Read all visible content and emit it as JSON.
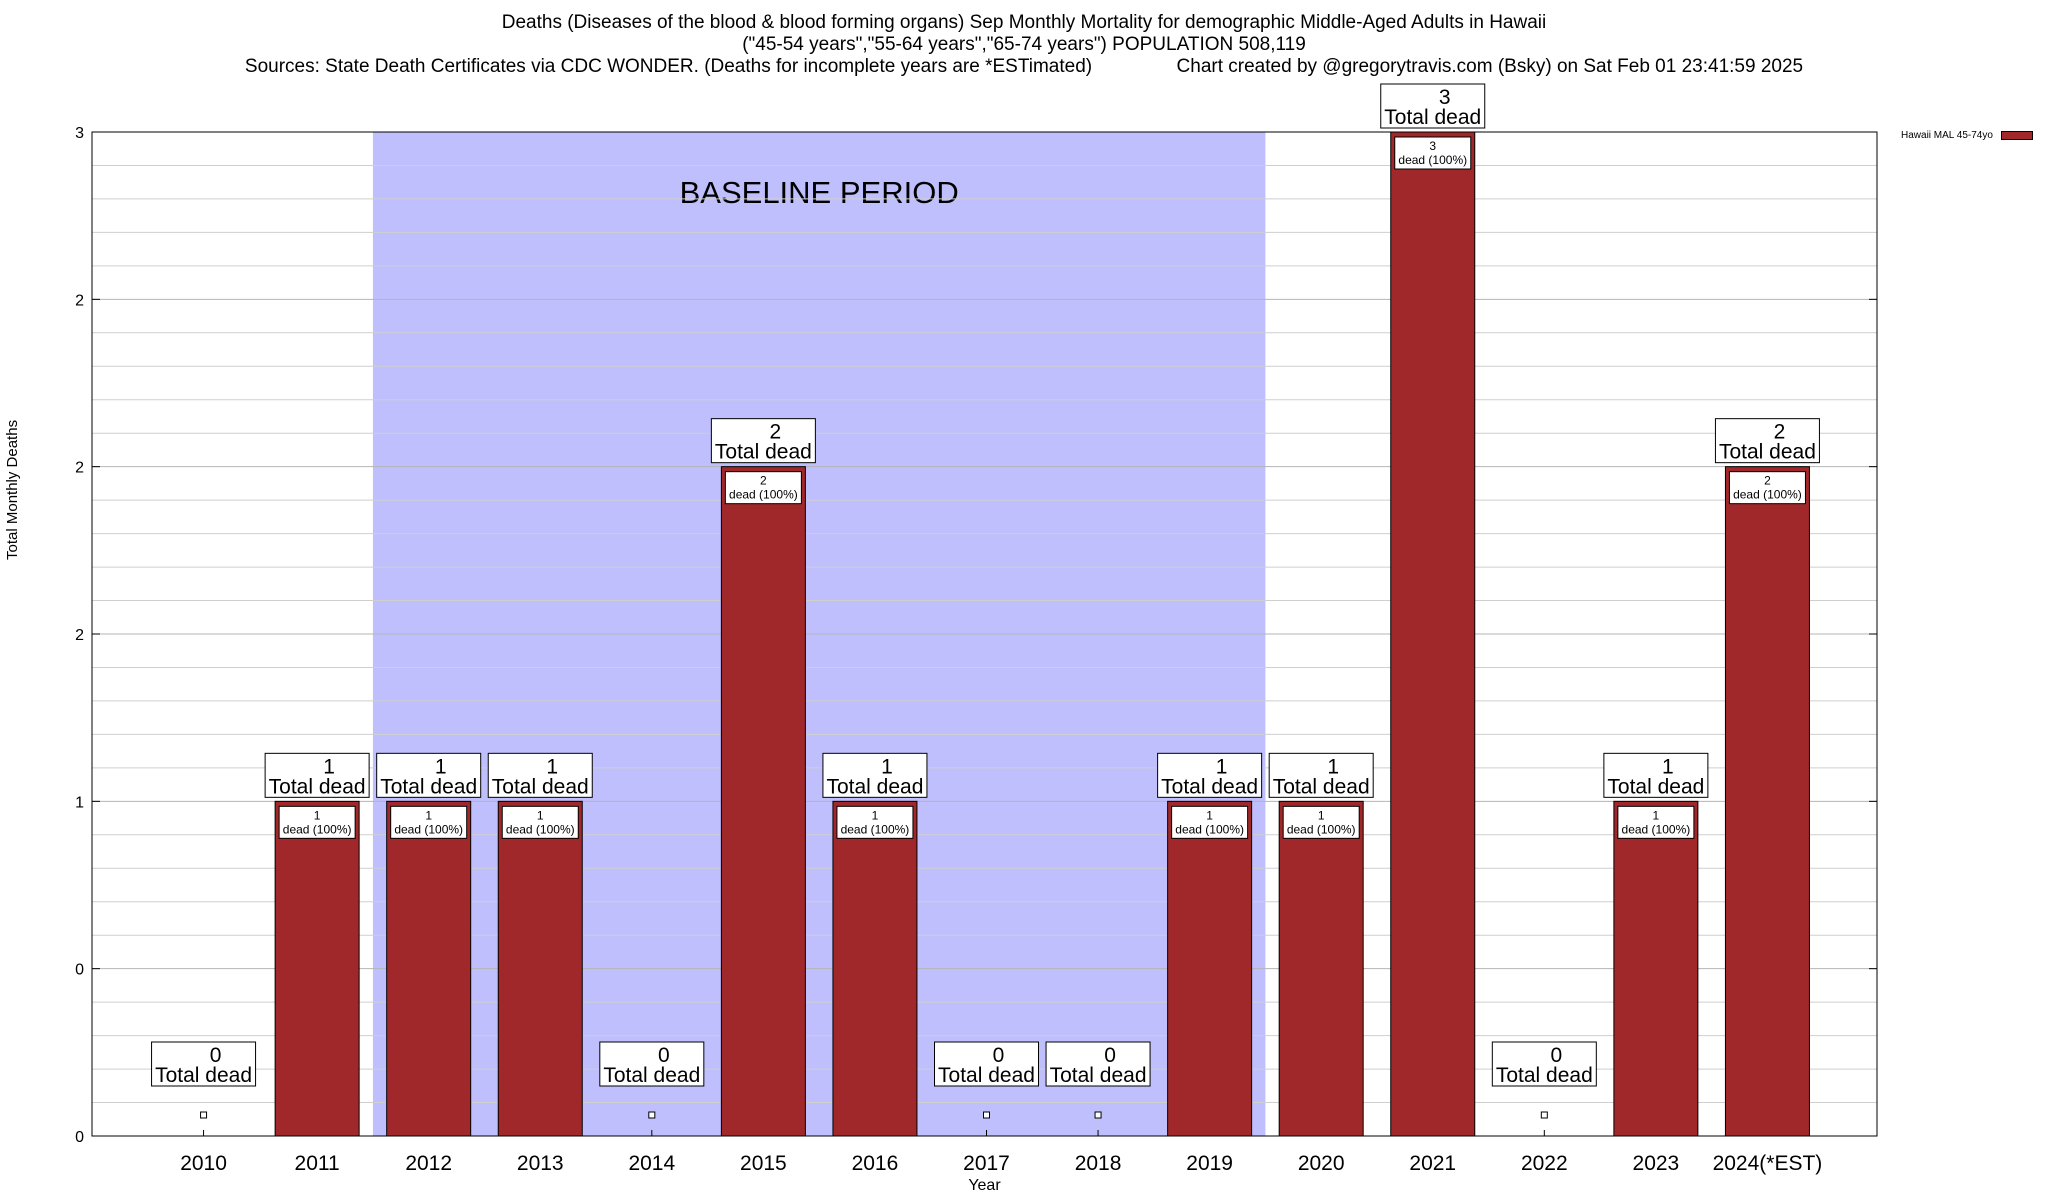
{
  "chart_data": {
    "type": "bar",
    "title_lines": [
      "Deaths (Diseases of the blood & blood forming organs) Sep Monthly Mortality for demographic Middle-Aged Adults in Hawaii",
      "(\"45-54 years\",\"55-64 years\",\"65-74 years\") POPULATION 508,119",
      "Sources: State Death Certificates via CDC WONDER. (Deaths for incomplete years are *ESTimated)                Chart created by @gregorytravis.com (Bsky) on Sat Feb 01 23:41:59 2025"
    ],
    "xlabel": "Year",
    "ylabel": "Total Monthly Deaths",
    "categories": [
      "2010",
      "2011",
      "2012",
      "2013",
      "2014",
      "2015",
      "2016",
      "2017",
      "2018",
      "2019",
      "2020",
      "2021",
      "2022",
      "2023",
      "2024(*EST)"
    ],
    "values": [
      0,
      1,
      1,
      1,
      0,
      2,
      1,
      0,
      0,
      1,
      1,
      3,
      0,
      1,
      2
    ],
    "total_label": "Total dead",
    "inner_label": "dead (100%)",
    "y_ticks": [
      {
        "value": 0,
        "label": "0"
      },
      {
        "value": 0.5,
        "label": "0"
      },
      {
        "value": 1,
        "label": "1"
      },
      {
        "value": 1.5,
        "label": "2"
      },
      {
        "value": 2,
        "label": "2"
      },
      {
        "value": 2.5,
        "label": "2"
      },
      {
        "value": 3,
        "label": "3"
      }
    ],
    "ylim": [
      0,
      3
    ],
    "baseline": {
      "label": "BASELINE PERIOD",
      "start": "2012",
      "end": "2019"
    },
    "legend": {
      "label": "Hawaii MAL 45-74yo",
      "color": "#a0282a",
      "position": "top-right"
    },
    "colors": {
      "bar": "#a0282a",
      "baseline": "#bfbffe"
    }
  }
}
